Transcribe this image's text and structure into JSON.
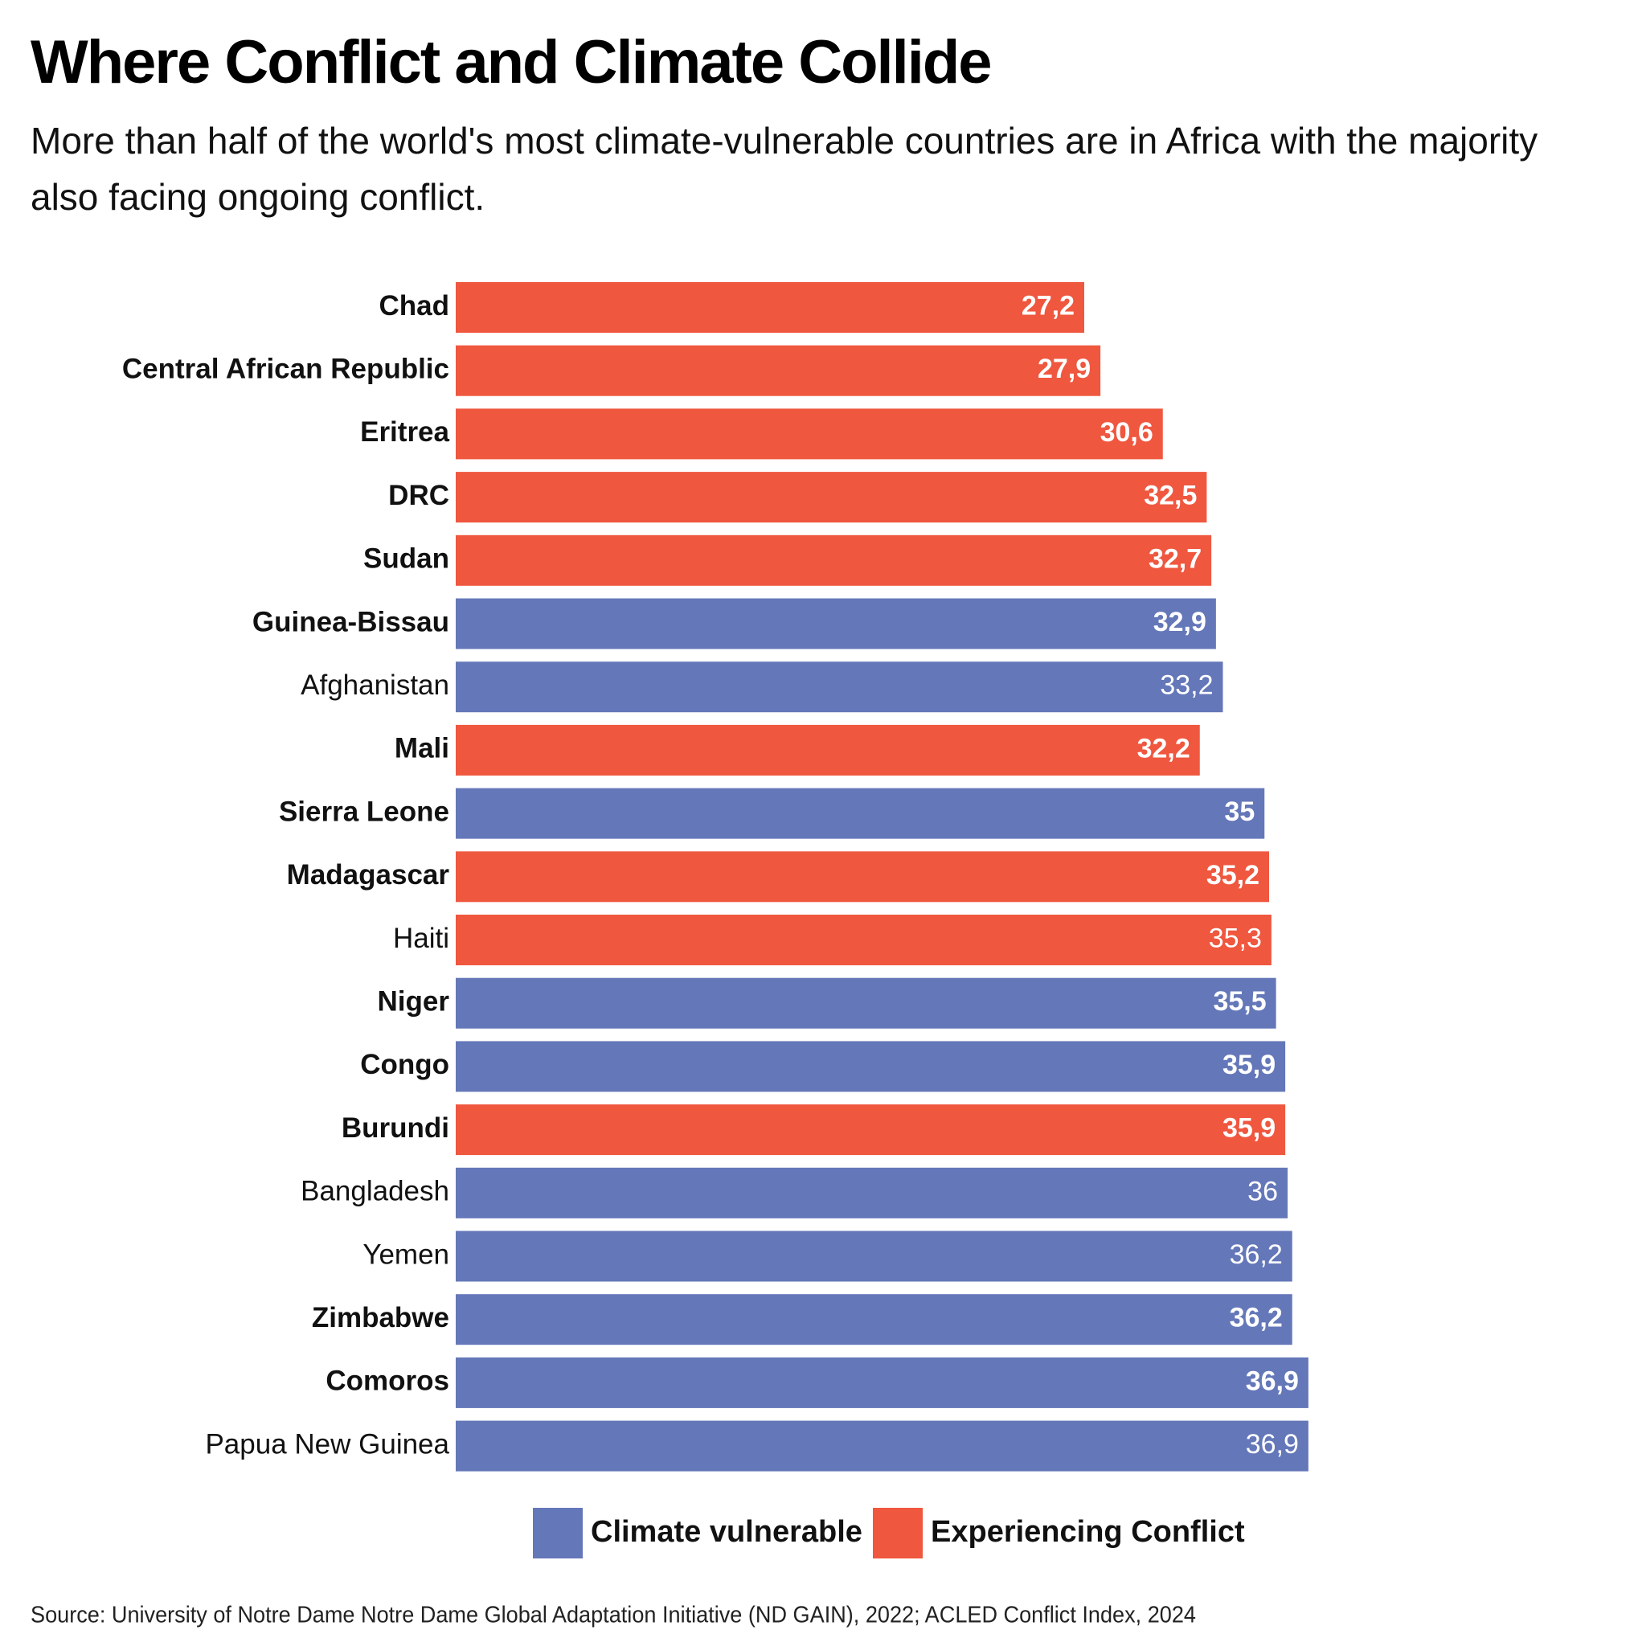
{
  "chart_data": {
    "type": "barh",
    "title": "Where Conflict and Climate Collide",
    "subtitle": "More than half of the world's most climate-vulnerable countries are in Africa with the majority also facing ongoing conflict.",
    "source": "Source: University of Notre Dame Notre Dame Global Adaptation Initiative (ND GAIN), 2022; ACLED Conflict Index, 2024",
    "categories": [
      "Chad",
      "Central African Republic",
      "Eritrea",
      "DRC",
      "Sudan",
      "Guinea-Bissau",
      "Afghanistan",
      "Mali",
      "Sierra Leone",
      "Madagascar",
      "Haiti",
      "Niger",
      "Congo",
      "Burundi",
      "Bangladesh",
      "Yemen",
      "Zimbabwe",
      "Comoros",
      "Papua New Guinea"
    ],
    "values": [
      27.2,
      27.9,
      30.6,
      32.5,
      32.7,
      32.9,
      33.2,
      32.2,
      35,
      35.2,
      35.3,
      35.5,
      35.9,
      35.9,
      36,
      36.2,
      36.2,
      36.9,
      36.9
    ],
    "value_labels": [
      "27,2",
      "27,9",
      "30,6",
      "32,5",
      "32,7",
      "32,9",
      "33,2",
      "32,2",
      "35",
      "35,2",
      "35,3",
      "35,5",
      "35,9",
      "35,9",
      "36",
      "36,2",
      "36,2",
      "36,9",
      "36,9"
    ],
    "colors": [
      "#ef573f",
      "#ef573f",
      "#ef573f",
      "#ef573f",
      "#ef573f",
      "#6477b9",
      "#6477b9",
      "#ef573f",
      "#6477b9",
      "#ef573f",
      "#ef573f",
      "#6477b9",
      "#6477b9",
      "#ef573f",
      "#6477b9",
      "#6477b9",
      "#6477b9",
      "#6477b9",
      "#6477b9"
    ],
    "bold": [
      true,
      true,
      true,
      true,
      true,
      true,
      false,
      true,
      true,
      true,
      false,
      true,
      true,
      true,
      false,
      false,
      true,
      true,
      false
    ],
    "legend": [
      {
        "name": "Climate vulnerable",
        "color": "#6477b9"
      },
      {
        "name": "Experiencing Conflict",
        "color": "#ef573f"
      }
    ],
    "xlim": [
      0,
      40
    ]
  }
}
